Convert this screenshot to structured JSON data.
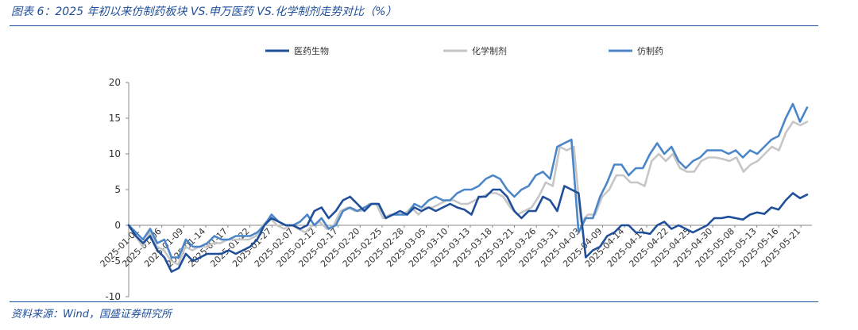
{
  "header": {
    "title": "图表 6：2025 年初以来仿制药板块 VS.申万医药 VS.化学制剂走势对比（%）"
  },
  "footer": {
    "source": "资料来源：Wind，国盛证券研究所"
  },
  "chart_data": {
    "type": "line",
    "title": "图表 6：2025 年初以来仿制药板块 VS.申万医药 VS.化学制剂走势对比（%）",
    "xlabel": "",
    "ylabel": "",
    "ylim": [
      -10,
      20
    ],
    "yticks": [
      -10,
      -5,
      0,
      5,
      10,
      15,
      20
    ],
    "grid": false,
    "legend_position": "top",
    "x_tick_labels": [
      "2025-01-01",
      "2025-01-06",
      "2025-01-09",
      "2025-01-14",
      "2025-01-17",
      "2025-01-22",
      "2025-01-27",
      "2025-02-07",
      "2025-02-12",
      "2025-02-17",
      "2025-02-20",
      "2025-02-25",
      "2025-02-28",
      "2025-03-05",
      "2025-03-10",
      "2025-03-13",
      "2025-03-18",
      "2025-03-21",
      "2025-03-26",
      "2025-03-31",
      "2025-04-03",
      "2025-04-09",
      "2025-04-14",
      "2025-04-17",
      "2025-04-22",
      "2025-04-25",
      "2025-04-30",
      "2025-05-08",
      "2025-05-13",
      "2025-05-16",
      "2025-05-21"
    ],
    "series": [
      {
        "name": "医药生物",
        "color": "#1F4E9A",
        "values": [
          0,
          -1.5,
          -2.5,
          -1.5,
          -3.5,
          -4.5,
          -6.5,
          -6,
          -4,
          -5,
          -4.5,
          -4,
          -4,
          -4,
          -3.5,
          -4,
          -3.5,
          -3,
          -2,
          0,
          1,
          0.5,
          0,
          0,
          -0.5,
          0,
          2,
          2.5,
          1,
          2,
          3.5,
          4,
          3,
          2,
          3,
          3,
          1,
          1.5,
          2,
          1.5,
          2.5,
          2,
          2.5,
          2,
          2.5,
          3,
          2.5,
          2.2,
          1.5,
          4,
          4,
          5,
          5,
          4,
          2,
          1,
          2,
          2,
          4,
          3.5,
          2,
          5.5,
          5,
          4.5,
          -4.5,
          -3.5,
          -3,
          -1.5,
          -1,
          0,
          0,
          -1,
          -1,
          -1.2,
          0,
          0.5,
          -0.5,
          0,
          -0.5,
          -1,
          -0.5,
          0,
          1,
          1,
          1.2,
          1,
          0.8,
          1.5,
          1.8,
          1.6,
          2.5,
          2.2,
          3.5,
          4.5,
          3.8,
          4.3
        ]
      },
      {
        "name": "化学制剂",
        "color": "#C6C6C6",
        "values": [
          0,
          -1.5,
          -3,
          -1,
          -3,
          -3.5,
          -5,
          -5.5,
          -3,
          -3.5,
          -3,
          -3,
          -2.5,
          -2.5,
          -2,
          -2,
          -2,
          -2,
          -1.5,
          0,
          1,
          0,
          -0.5,
          0,
          -0.5,
          -1,
          0,
          0.5,
          -0.5,
          0,
          2,
          2.5,
          2,
          2,
          3,
          3,
          1,
          1.5,
          1.5,
          1.5,
          2.5,
          1.5,
          2.5,
          2.5,
          3,
          3.5,
          3.5,
          3,
          3,
          3.5,
          4,
          4.5,
          4.5,
          4,
          2.5,
          1.5,
          2,
          2.5,
          4,
          6,
          5.5,
          11,
          10.5,
          11,
          0.5,
          1.5,
          1.5,
          4,
          5,
          7,
          7,
          6,
          6,
          5.5,
          9,
          10,
          9,
          10,
          8,
          7.5,
          7.5,
          9,
          9.5,
          9.5,
          9.3,
          9,
          9.5,
          7.5,
          8.5,
          9,
          10,
          11,
          10.5,
          13,
          14.5,
          14,
          14.5
        ]
      },
      {
        "name": "仿制药",
        "color": "#4A86C8",
        "values": [
          0,
          -1,
          -2,
          -0.5,
          -2.5,
          -2,
          -4.5,
          -4.5,
          -2,
          -3,
          -3,
          -2.5,
          -1.5,
          -2,
          -2,
          -1.5,
          -1.5,
          -1.5,
          -1,
          0,
          1.5,
          0.5,
          0,
          0,
          0.5,
          1.5,
          0,
          1,
          -0.5,
          0,
          2,
          2.5,
          2,
          2.5,
          3,
          3,
          1,
          1.5,
          1.5,
          1.5,
          3,
          2.5,
          3.5,
          4,
          3.5,
          3.5,
          4.5,
          5,
          5,
          5.5,
          6.5,
          7,
          6.5,
          5,
          4,
          5,
          5.5,
          7,
          7.5,
          6.5,
          11,
          11.5,
          12,
          -1,
          1,
          1,
          4,
          6,
          8.5,
          8.5,
          7,
          8,
          8,
          10,
          11.5,
          10,
          11,
          9,
          8,
          9,
          9.5,
          10.5,
          10.5,
          10.5,
          10,
          10.5,
          9.5,
          10.5,
          10,
          11,
          12,
          12.5,
          15,
          17,
          14.5,
          16.5
        ]
      }
    ]
  }
}
